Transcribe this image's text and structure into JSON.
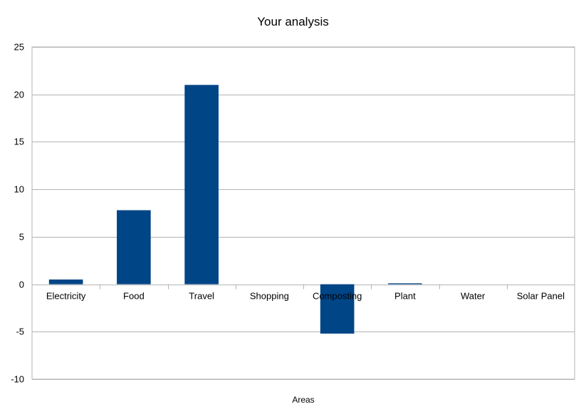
{
  "chart_data": {
    "type": "bar",
    "title": "Your analysis",
    "xlabel": "Areas",
    "ylabel": "",
    "categories": [
      "Electricity",
      "Food",
      "Travel",
      "Shopping",
      "Composting",
      "Plant",
      "Water",
      "Solar Panel"
    ],
    "values": [
      0.5,
      7.8,
      21,
      0,
      -5.2,
      0.1,
      0,
      0
    ],
    "ylim": [
      -10,
      25
    ],
    "yticks": [
      25,
      20,
      15,
      10,
      5,
      0,
      -5,
      -10
    ],
    "grid": true,
    "legend": "none",
    "bar_color": "#004586",
    "grid_color": "#b3b3b3"
  }
}
